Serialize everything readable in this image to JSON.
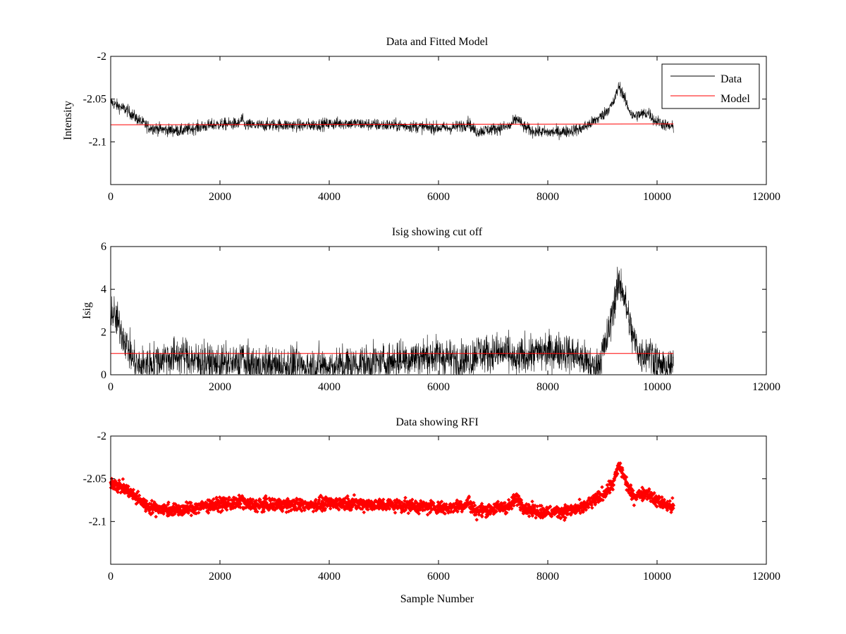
{
  "chart_data": [
    {
      "type": "line",
      "title": "Data and Fitted Model",
      "xlabel": "",
      "ylabel": "Intensity",
      "xlim": [
        0,
        12000
      ],
      "ylim": [
        -2.15,
        -2.0
      ],
      "xticks": [
        "0",
        "2000",
        "4000",
        "6000",
        "8000",
        "10000",
        "12000"
      ],
      "yticks": [
        "-2",
        "-2.05",
        "-2.1"
      ],
      "grid": false,
      "legend_position": "top-right",
      "series": [
        {
          "name": "Data",
          "color": "#000000",
          "style": "noisy-line",
          "noise": 0.004,
          "x": [
            0,
            100,
            300,
            500,
            700,
            1000,
            1300,
            1600,
            1900,
            2200,
            2350,
            2400,
            2450,
            2700,
            3000,
            3500,
            4000,
            4300,
            4800,
            5300,
            5800,
            6200,
            6500,
            6550,
            6600,
            6700,
            6800,
            7000,
            7300,
            7400,
            7450,
            7550,
            7700,
            8000,
            8300,
            8600,
            8800,
            9000,
            9100,
            9200,
            9300,
            9350,
            9450,
            9550,
            9700,
            9850,
            9950,
            10050,
            10200,
            10300
          ],
          "y": [
            -2.053,
            -2.057,
            -2.063,
            -2.074,
            -2.083,
            -2.086,
            -2.087,
            -2.083,
            -2.08,
            -2.079,
            -2.079,
            -2.073,
            -2.08,
            -2.081,
            -2.08,
            -2.081,
            -2.079,
            -2.078,
            -2.08,
            -2.081,
            -2.083,
            -2.084,
            -2.08,
            -2.076,
            -2.083,
            -2.088,
            -2.087,
            -2.085,
            -2.082,
            -2.075,
            -2.073,
            -2.082,
            -2.087,
            -2.089,
            -2.088,
            -2.085,
            -2.078,
            -2.069,
            -2.062,
            -2.055,
            -2.035,
            -2.04,
            -2.057,
            -2.07,
            -2.068,
            -2.066,
            -2.075,
            -2.077,
            -2.082,
            -2.083
          ]
        },
        {
          "name": "Model",
          "color": "#ff0000",
          "style": "line",
          "x": [
            0,
            10300
          ],
          "y": [
            -2.08,
            -2.079
          ]
        }
      ]
    },
    {
      "type": "line",
      "title": "Isig showing cut off",
      "xlabel": "",
      "ylabel": "Isig",
      "xlim": [
        0,
        12000
      ],
      "ylim": [
        0,
        6
      ],
      "xticks": [
        "0",
        "2000",
        "4000",
        "6000",
        "8000",
        "10000",
        "12000"
      ],
      "yticks": [
        "0",
        "2",
        "4",
        "6"
      ],
      "grid": false,
      "series": [
        {
          "name": "",
          "color": "#000000",
          "style": "noisy-line",
          "noise": 0.5,
          "floor": 0,
          "x": [
            0,
            100,
            200,
            300,
            400,
            500,
            700,
            1000,
            1300,
            1600,
            1900,
            2200,
            2350,
            2400,
            2450,
            2700,
            3000,
            3500,
            4000,
            4500,
            5000,
            5500,
            6000,
            6300,
            6600,
            6700,
            6800,
            7000,
            7300,
            7400,
            7500,
            7700,
            8000,
            8300,
            8600,
            8850,
            8950,
            9100,
            9200,
            9300,
            9350,
            9450,
            9550,
            9700,
            9850,
            9950,
            10050,
            10200,
            10300
          ],
          "y": [
            3.0,
            2.6,
            2.0,
            1.4,
            0.7,
            0.4,
            0.5,
            0.8,
            0.9,
            0.6,
            0.5,
            0.5,
            0.5,
            1.1,
            0.4,
            0.4,
            0.4,
            0.4,
            0.4,
            0.5,
            0.6,
            0.8,
            0.9,
            0.7,
            0.7,
            1.1,
            1.0,
            1.0,
            1.0,
            0.5,
            0.8,
            1.0,
            1.1,
            1.1,
            0.8,
            0.3,
            0.6,
            1.8,
            3.2,
            4.3,
            4.2,
            3.0,
            1.8,
            0.9,
            1.1,
            0.8,
            0.4,
            0.3,
            0.4
          ]
        },
        {
          "name": "",
          "color": "#ff0000",
          "style": "line",
          "x": [
            0,
            10300
          ],
          "y": [
            1,
            1
          ]
        }
      ]
    },
    {
      "type": "scatter",
      "title": "Data showing RFI",
      "xlabel": "Sample Number",
      "ylabel": "",
      "xlim": [
        0,
        12000
      ],
      "ylim": [
        -2.15,
        -2.0
      ],
      "xticks": [
        "0",
        "2000",
        "4000",
        "6000",
        "8000",
        "10000",
        "12000"
      ],
      "yticks": [
        "-2",
        "-2.05",
        "-2.1"
      ],
      "grid": false,
      "series": [
        {
          "name": "",
          "color": "#ff0000",
          "style": "markers",
          "noise": 0.004,
          "x": [
            0,
            100,
            300,
            500,
            700,
            1000,
            1300,
            1600,
            1900,
            2200,
            2350,
            2400,
            2450,
            2700,
            3000,
            3500,
            4000,
            4300,
            4800,
            5300,
            5800,
            6200,
            6500,
            6550,
            6600,
            6700,
            6800,
            7000,
            7300,
            7400,
            7450,
            7550,
            7700,
            8000,
            8300,
            8600,
            8800,
            9000,
            9100,
            9200,
            9300,
            9350,
            9450,
            9550,
            9700,
            9850,
            9950,
            10050,
            10200,
            10300
          ],
          "y": [
            -2.053,
            -2.057,
            -2.063,
            -2.074,
            -2.083,
            -2.086,
            -2.087,
            -2.083,
            -2.08,
            -2.079,
            -2.079,
            -2.073,
            -2.08,
            -2.081,
            -2.08,
            -2.081,
            -2.079,
            -2.078,
            -2.08,
            -2.081,
            -2.083,
            -2.084,
            -2.08,
            -2.076,
            -2.083,
            -2.088,
            -2.087,
            -2.085,
            -2.082,
            -2.075,
            -2.073,
            -2.082,
            -2.087,
            -2.089,
            -2.088,
            -2.085,
            -2.078,
            -2.069,
            -2.062,
            -2.055,
            -2.035,
            -2.04,
            -2.057,
            -2.07,
            -2.068,
            -2.066,
            -2.075,
            -2.077,
            -2.082,
            -2.083
          ]
        }
      ]
    }
  ]
}
